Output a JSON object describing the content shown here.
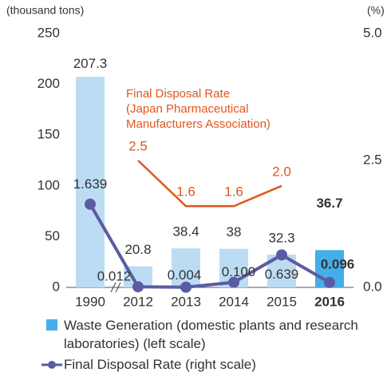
{
  "chart_data": {
    "type": "bar-line",
    "y_label": "(thousand tons)",
    "y2_label": "(%)",
    "categories": [
      "1990",
      "2012",
      "2013",
      "2014",
      "2015",
      "2016"
    ],
    "highlight_index": 5,
    "ylim": [
      0,
      250
    ],
    "yticks": [
      0,
      50,
      100,
      150,
      200,
      250
    ],
    "y2lim": [
      0,
      5
    ],
    "y2ticks": [
      {
        "value": 0,
        "label": "0.0"
      },
      2.5,
      {
        "value": 5,
        "label": "5.0"
      }
    ],
    "annotation": [
      "Final Disposal Rate",
      "(Japan Pharmaceutical",
      "Manufacturers Association)"
    ],
    "series": [
      {
        "name": "Waste Generation (domestic plants and research laboratories) (left scale)",
        "type": "bar",
        "colors": [
          "#bcdcf3",
          "#bcdcf3",
          "#bcdcf3",
          "#bcdcf3",
          "#bcdcf3",
          "#44aee8"
        ],
        "values": [
          207.3,
          20.8,
          38.4,
          38.0,
          32.3,
          36.7
        ]
      },
      {
        "name": "Final Disposal Rate (right scale)",
        "type": "line",
        "axis": "y2",
        "color": "#5b5ba3",
        "values": [
          1.639,
          0.012,
          0.004,
          0.1,
          0.639,
          0.096
        ],
        "value_labels": [
          "1.639",
          "0.012",
          "0.004",
          "0.100",
          "0.639",
          "0.096"
        ]
      },
      {
        "type": "line",
        "axis": "y2",
        "color": "#e2561c",
        "values": [
          null,
          2.5,
          1.6,
          1.6,
          2.0,
          null
        ],
        "value_labels": [
          null,
          "2.5",
          "1.6",
          "1.6",
          "2.0",
          null
        ]
      }
    ]
  }
}
